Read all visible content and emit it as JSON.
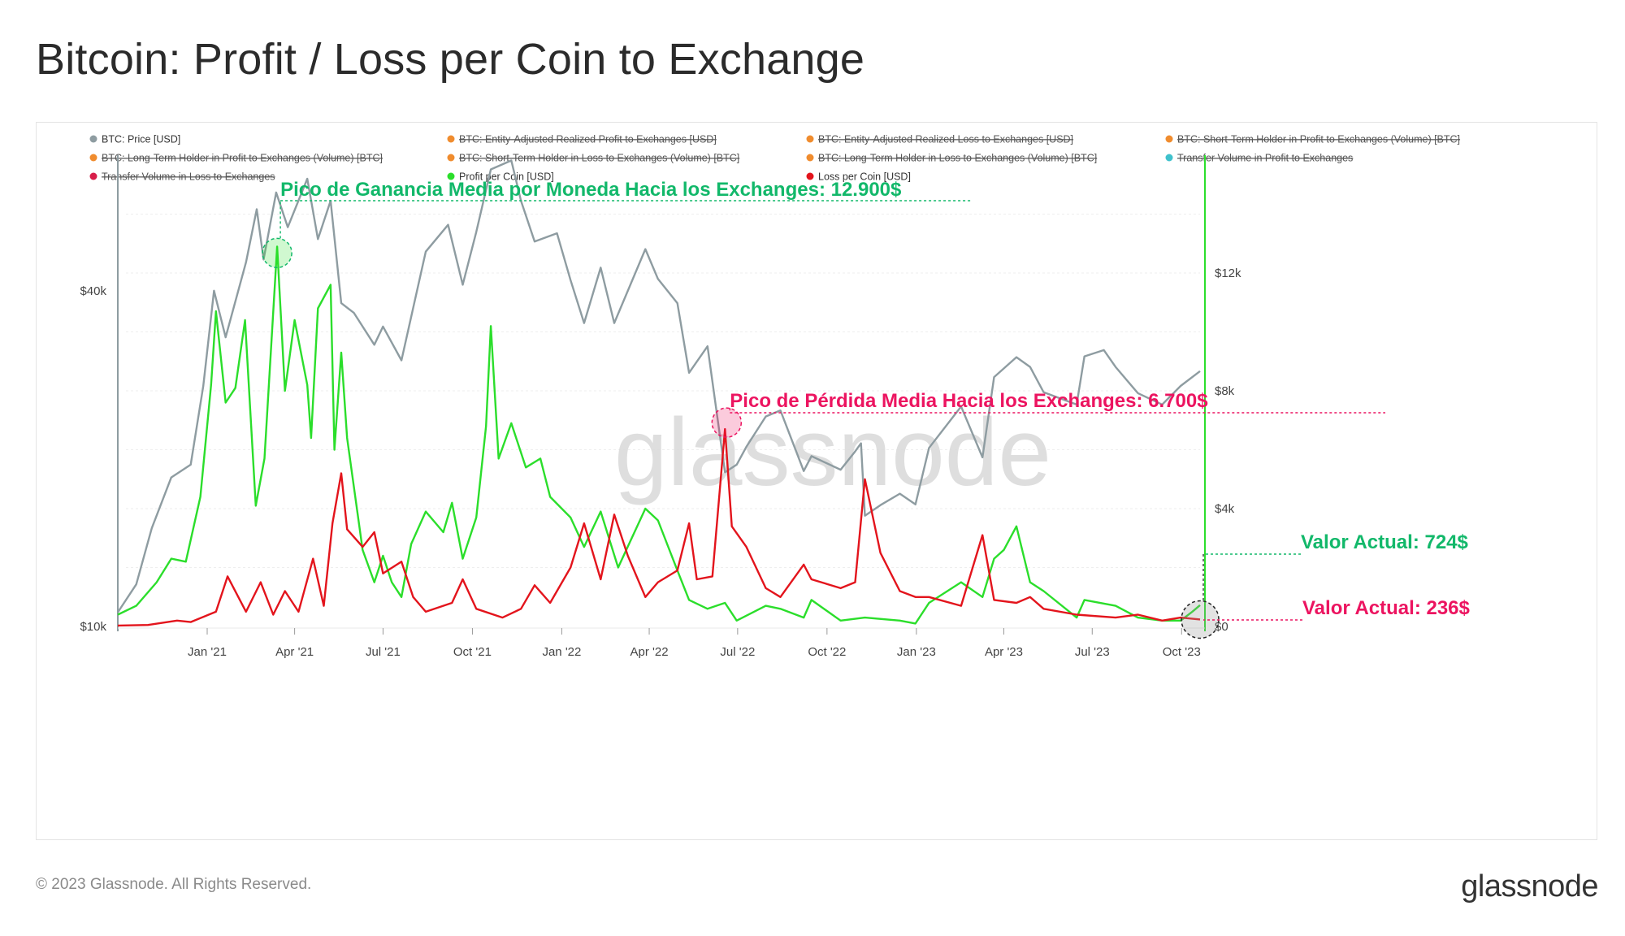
{
  "page": {
    "title": "Bitcoin: Profit / Loss per Coin to Exchange",
    "copyright": "© 2023 Glassnode. All Rights Reserved.",
    "logo": "glassnode",
    "watermark": "glassnode"
  },
  "chart_data": {
    "type": "line",
    "title": "Bitcoin: Profit / Loss per Coin to Exchange",
    "x_ticks": [
      "Jan '21",
      "Apr '21",
      "Jul '21",
      "Oct '21",
      "Jan '22",
      "Apr '22",
      "Jul '22",
      "Oct '22",
      "Jan '23",
      "Apr '23",
      "Jul '23",
      "Oct '23"
    ],
    "x_range": [
      "2020-10-01",
      "2023-10-20"
    ],
    "y_left": {
      "scale": "log",
      "ticks": [
        "$10k",
        "$40k"
      ],
      "range": [
        10000,
        70000
      ]
    },
    "y_right": {
      "scale": "linear",
      "ticks": [
        "$0",
        "$4k",
        "$8k",
        "$12k"
      ],
      "range": [
        0,
        16000
      ]
    },
    "grid": true,
    "legend_position": "top-left",
    "legend": [
      {
        "name": "BTC: Price [USD]",
        "color": "#8e9ca1",
        "active": true
      },
      {
        "name": "BTC: Entity-Adjusted Realized Profit to Exchanges [USD]",
        "color": "#f08c2e",
        "active": false
      },
      {
        "name": "BTC: Entity-Adjusted Realized Loss to Exchanges [USD]",
        "color": "#f08c2e",
        "active": false
      },
      {
        "name": "BTC: Short-Term Holder in Profit to Exchanges (Volume) [BTC]",
        "color": "#f08c2e",
        "active": false
      },
      {
        "name": "BTC: Long-Term Holder in Profit to Exchanges (Volume) [BTC]",
        "color": "#f08c2e",
        "active": false
      },
      {
        "name": "BTC: Short-Term Holder in Loss to Exchanges (Volume) [BTC]",
        "color": "#f08c2e",
        "active": false
      },
      {
        "name": "BTC: Long-Term Holder in Loss to Exchanges (Volume) [BTC]",
        "color": "#f08c2e",
        "active": false
      },
      {
        "name": "Transfer Volume in Profit to Exchanges",
        "color": "#3fc1cc",
        "active": false
      },
      {
        "name": "Transfer Volume in Loss to Exchanges",
        "color": "#d81e4a",
        "active": false
      },
      {
        "name": "Profit per Coin [USD]",
        "color": "#2bde2b",
        "active": true
      },
      {
        "name": "Loss per Coin [USD]",
        "color": "#e3141c",
        "active": true
      }
    ],
    "series": [
      {
        "name": "BTC: Price [USD]",
        "axis": "left",
        "color": "#8e9ca1",
        "points": [
          [
            "2020-10-01",
            10600
          ],
          [
            "2020-10-20",
            11900
          ],
          [
            "2020-11-05",
            15000
          ],
          [
            "2020-11-25",
            18500
          ],
          [
            "2020-12-15",
            19500
          ],
          [
            "2020-12-28",
            27000
          ],
          [
            "2021-01-08",
            40000
          ],
          [
            "2021-01-20",
            33000
          ],
          [
            "2021-02-10",
            45000
          ],
          [
            "2021-02-21",
            56000
          ],
          [
            "2021-02-28",
            45500
          ],
          [
            "2021-03-13",
            60000
          ],
          [
            "2021-03-25",
            52000
          ],
          [
            "2021-04-14",
            63500
          ],
          [
            "2021-04-25",
            49500
          ],
          [
            "2021-05-08",
            58000
          ],
          [
            "2021-05-19",
            38000
          ],
          [
            "2021-06-01",
            36500
          ],
          [
            "2021-06-22",
            32000
          ],
          [
            "2021-07-01",
            34500
          ],
          [
            "2021-07-20",
            30000
          ],
          [
            "2021-08-14",
            47000
          ],
          [
            "2021-09-06",
            52500
          ],
          [
            "2021-09-21",
            41000
          ],
          [
            "2021-10-05",
            51000
          ],
          [
            "2021-10-20",
            66000
          ],
          [
            "2021-11-10",
            68500
          ],
          [
            "2021-11-20",
            58000
          ],
          [
            "2021-12-04",
            49000
          ],
          [
            "2021-12-27",
            50700
          ],
          [
            "2022-01-10",
            41800
          ],
          [
            "2022-01-24",
            35000
          ],
          [
            "2022-02-10",
            44000
          ],
          [
            "2022-02-24",
            35000
          ],
          [
            "2022-03-28",
            47500
          ],
          [
            "2022-04-10",
            42000
          ],
          [
            "2022-04-30",
            38000
          ],
          [
            "2022-05-12",
            28500
          ],
          [
            "2022-05-31",
            31800
          ],
          [
            "2022-06-18",
            18900
          ],
          [
            "2022-06-30",
            19500
          ],
          [
            "2022-07-10",
            21000
          ],
          [
            "2022-07-30",
            23800
          ],
          [
            "2022-08-14",
            24400
          ],
          [
            "2022-09-07",
            19000
          ],
          [
            "2022-09-15",
            20200
          ],
          [
            "2022-10-15",
            19100
          ],
          [
            "2022-10-30",
            20600
          ],
          [
            "2022-11-05",
            21300
          ],
          [
            "2022-11-09",
            15800
          ],
          [
            "2022-11-25",
            16500
          ],
          [
            "2022-12-15",
            17300
          ],
          [
            "2022-12-31",
            16550
          ],
          [
            "2023-01-14",
            20900
          ],
          [
            "2023-02-16",
            24800
          ],
          [
            "2023-03-10",
            20100
          ],
          [
            "2023-03-22",
            28000
          ],
          [
            "2023-04-14",
            30400
          ],
          [
            "2023-04-28",
            29200
          ],
          [
            "2023-05-12",
            26300
          ],
          [
            "2023-06-15",
            25000
          ],
          [
            "2023-06-23",
            30500
          ],
          [
            "2023-07-13",
            31300
          ],
          [
            "2023-07-25",
            29200
          ],
          [
            "2023-08-17",
            26200
          ],
          [
            "2023-09-11",
            25000
          ],
          [
            "2023-09-30",
            27000
          ],
          [
            "2023-10-20",
            28700
          ]
        ]
      },
      {
        "name": "Profit per Coin [USD]",
        "axis": "right",
        "color": "#2bde2b",
        "points": [
          [
            "2020-10-01",
            400
          ],
          [
            "2020-10-20",
            700
          ],
          [
            "2020-11-10",
            1500
          ],
          [
            "2020-11-25",
            2300
          ],
          [
            "2020-12-10",
            2200
          ],
          [
            "2020-12-25",
            4400
          ],
          [
            "2021-01-05",
            8200
          ],
          [
            "2021-01-10",
            10700
          ],
          [
            "2021-01-20",
            7600
          ],
          [
            "2021-01-30",
            8100
          ],
          [
            "2021-02-09",
            10400
          ],
          [
            "2021-02-20",
            4100
          ],
          [
            "2021-03-01",
            5700
          ],
          [
            "2021-03-14",
            12900
          ],
          [
            "2021-03-22",
            8000
          ],
          [
            "2021-04-01",
            10400
          ],
          [
            "2021-04-14",
            8200
          ],
          [
            "2021-04-18",
            6400
          ],
          [
            "2021-04-25",
            10800
          ],
          [
            "2021-05-08",
            11600
          ],
          [
            "2021-05-12",
            6000
          ],
          [
            "2021-05-19",
            9300
          ],
          [
            "2021-05-25",
            6400
          ],
          [
            "2021-06-10",
            2600
          ],
          [
            "2021-06-22",
            1500
          ],
          [
            "2021-07-01",
            2400
          ],
          [
            "2021-07-10",
            1500
          ],
          [
            "2021-07-20",
            1000
          ],
          [
            "2021-07-30",
            2800
          ],
          [
            "2021-08-14",
            3900
          ],
          [
            "2021-09-01",
            3200
          ],
          [
            "2021-09-10",
            4200
          ],
          [
            "2021-09-21",
            2300
          ],
          [
            "2021-10-05",
            3700
          ],
          [
            "2021-10-15",
            6800
          ],
          [
            "2021-10-20",
            10200
          ],
          [
            "2021-10-28",
            5700
          ],
          [
            "2021-11-10",
            6900
          ],
          [
            "2021-11-25",
            5400
          ],
          [
            "2021-12-10",
            5700
          ],
          [
            "2021-12-20",
            4400
          ],
          [
            "2022-01-10",
            3700
          ],
          [
            "2022-01-24",
            2700
          ],
          [
            "2022-02-10",
            3900
          ],
          [
            "2022-02-28",
            2000
          ],
          [
            "2022-03-28",
            4000
          ],
          [
            "2022-04-10",
            3600
          ],
          [
            "2022-04-30",
            1900
          ],
          [
            "2022-05-12",
            900
          ],
          [
            "2022-05-31",
            600
          ],
          [
            "2022-06-18",
            800
          ],
          [
            "2022-06-30",
            200
          ],
          [
            "2022-07-30",
            700
          ],
          [
            "2022-08-14",
            600
          ],
          [
            "2022-09-07",
            300
          ],
          [
            "2022-09-15",
            900
          ],
          [
            "2022-10-15",
            200
          ],
          [
            "2022-11-09",
            300
          ],
          [
            "2022-12-15",
            200
          ],
          [
            "2022-12-31",
            100
          ],
          [
            "2023-01-14",
            800
          ],
          [
            "2023-02-16",
            1500
          ],
          [
            "2023-03-10",
            1000
          ],
          [
            "2023-03-22",
            2300
          ],
          [
            "2023-04-01",
            2600
          ],
          [
            "2023-04-14",
            3400
          ],
          [
            "2023-04-28",
            1500
          ],
          [
            "2023-05-12",
            1200
          ],
          [
            "2023-06-15",
            300
          ],
          [
            "2023-06-23",
            900
          ],
          [
            "2023-07-25",
            700
          ],
          [
            "2023-08-17",
            300
          ],
          [
            "2023-09-11",
            200
          ],
          [
            "2023-09-30",
            200
          ],
          [
            "2023-10-12",
            500
          ],
          [
            "2023-10-20",
            724
          ]
        ]
      },
      {
        "name": "Loss per Coin [USD]",
        "axis": "right",
        "color": "#e3141c",
        "points": [
          [
            "2020-10-01",
            30
          ],
          [
            "2020-11-01",
            50
          ],
          [
            "2020-12-01",
            200
          ],
          [
            "2020-12-15",
            150
          ],
          [
            "2021-01-10",
            500
          ],
          [
            "2021-01-22",
            1700
          ],
          [
            "2021-02-10",
            500
          ],
          [
            "2021-02-25",
            1500
          ],
          [
            "2021-03-10",
            400
          ],
          [
            "2021-03-22",
            1200
          ],
          [
            "2021-04-05",
            500
          ],
          [
            "2021-04-20",
            2300
          ],
          [
            "2021-05-01",
            700
          ],
          [
            "2021-05-10",
            3500
          ],
          [
            "2021-05-19",
            5200
          ],
          [
            "2021-05-25",
            3300
          ],
          [
            "2021-06-10",
            2700
          ],
          [
            "2021-06-22",
            3200
          ],
          [
            "2021-07-01",
            1800
          ],
          [
            "2021-07-20",
            2200
          ],
          [
            "2021-08-01",
            1000
          ],
          [
            "2021-08-14",
            500
          ],
          [
            "2021-09-10",
            800
          ],
          [
            "2021-09-21",
            1600
          ],
          [
            "2021-10-05",
            600
          ],
          [
            "2021-11-01",
            300
          ],
          [
            "2021-11-20",
            600
          ],
          [
            "2021-12-04",
            1400
          ],
          [
            "2021-12-20",
            800
          ],
          [
            "2022-01-10",
            2000
          ],
          [
            "2022-01-24",
            3500
          ],
          [
            "2022-02-10",
            1600
          ],
          [
            "2022-02-24",
            3800
          ],
          [
            "2022-03-10",
            2400
          ],
          [
            "2022-03-28",
            1000
          ],
          [
            "2022-04-10",
            1500
          ],
          [
            "2022-04-30",
            1900
          ],
          [
            "2022-05-12",
            3500
          ],
          [
            "2022-05-20",
            1600
          ],
          [
            "2022-06-05",
            1700
          ],
          [
            "2022-06-18",
            6700
          ],
          [
            "2022-06-25",
            3400
          ],
          [
            "2022-07-10",
            2700
          ],
          [
            "2022-07-30",
            1300
          ],
          [
            "2022-08-14",
            1000
          ],
          [
            "2022-09-07",
            2100
          ],
          [
            "2022-09-15",
            1600
          ],
          [
            "2022-10-15",
            1300
          ],
          [
            "2022-10-30",
            1500
          ],
          [
            "2022-11-09",
            5000
          ],
          [
            "2022-11-25",
            2500
          ],
          [
            "2022-12-15",
            1200
          ],
          [
            "2022-12-31",
            1000
          ],
          [
            "2023-01-14",
            1000
          ],
          [
            "2023-02-16",
            700
          ],
          [
            "2023-03-10",
            3100
          ],
          [
            "2023-03-22",
            900
          ],
          [
            "2023-04-14",
            800
          ],
          [
            "2023-04-28",
            1000
          ],
          [
            "2023-05-12",
            600
          ],
          [
            "2023-06-15",
            400
          ],
          [
            "2023-07-25",
            300
          ],
          [
            "2023-08-17",
            400
          ],
          [
            "2023-09-11",
            200
          ],
          [
            "2023-09-30",
            300
          ],
          [
            "2023-10-20",
            236
          ]
        ]
      }
    ],
    "annotations": [
      {
        "text": "Pico de Ganancia Media por Moneda Hacia los Exchanges: 12.900$",
        "color": "#12b86a",
        "x": "2021-03-14",
        "series": "Profit per Coin [USD]",
        "value": 12900,
        "kind": "peak"
      },
      {
        "text": "Pico de Pérdida Media Hacia los Exchanges: 6.700$",
        "color": "#ec1460",
        "x": "2022-06-18",
        "series": "Loss per Coin [USD]",
        "value": 6700,
        "kind": "peak"
      },
      {
        "text": "Valor Actual: 724$",
        "color": "#12b86a",
        "x": "2023-10-20",
        "series": "Profit per Coin [USD]",
        "value": 724,
        "kind": "current"
      },
      {
        "text": "Valor Actual: 236$",
        "color": "#ec1460",
        "x": "2023-10-20",
        "series": "Loss per Coin [USD]",
        "value": 236,
        "kind": "current"
      }
    ]
  }
}
